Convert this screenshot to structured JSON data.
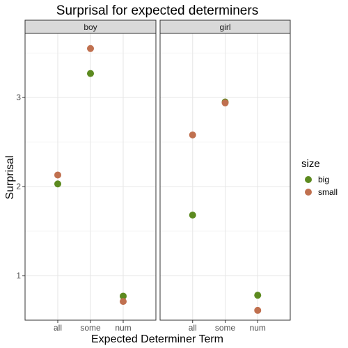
{
  "chart_data": {
    "type": "scatter",
    "title": "Surprisal for expected determiners",
    "xlabel": "Expected Determiner Term",
    "ylabel": "Surprisal",
    "categories": [
      "all",
      "some",
      "num"
    ],
    "y_ticks": [
      1,
      2,
      3
    ],
    "ylim": [
      0.5,
      3.72
    ],
    "grid": true,
    "legend": {
      "title": "size",
      "position": "right",
      "entries": [
        {
          "name": "big",
          "color": "#5c8a1f"
        },
        {
          "name": "small",
          "color": "#c0704f"
        }
      ]
    },
    "panels": [
      {
        "label": "boy",
        "series": [
          {
            "name": "big",
            "values": [
              2.03,
              3.27,
              0.77
            ]
          },
          {
            "name": "small",
            "values": [
              2.13,
              3.55,
              0.71
            ]
          }
        ]
      },
      {
        "label": "girl",
        "series": [
          {
            "name": "big",
            "values": [
              1.68,
              2.95,
              0.78
            ]
          },
          {
            "name": "small",
            "values": [
              2.58,
              2.94,
              0.61
            ]
          }
        ]
      }
    ]
  }
}
